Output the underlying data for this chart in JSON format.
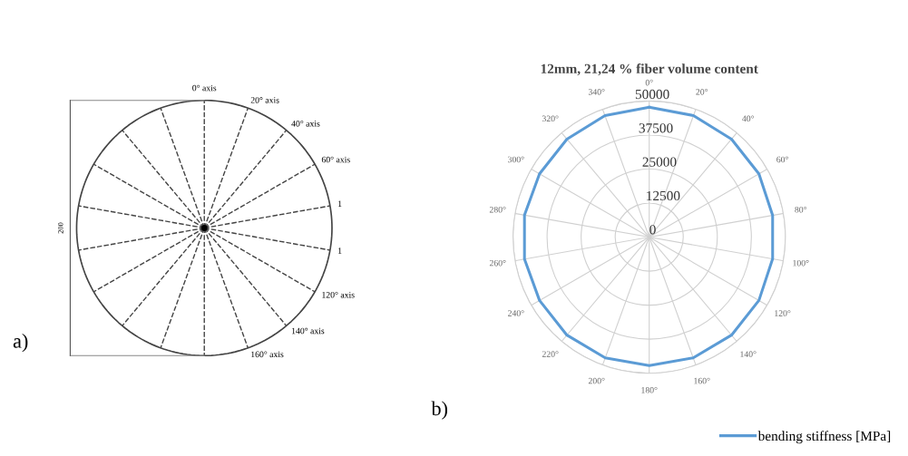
{
  "chart_data": [
    {
      "type": "other",
      "annotations": [
        "0° axis",
        "20° axis",
        "40° axis",
        "60° axis",
        "1",
        "1",
        "120° axis",
        "140° axis",
        "160° axis",
        "200",
        "a)"
      ]
    },
    {
      "type": "radar",
      "title": "12mm, 21,24 % fiber volume content",
      "categories": [
        "0°",
        "20°",
        "40°",
        "60°",
        "80°",
        "100°",
        "120°",
        "140°",
        "160°",
        "180°",
        "200°",
        "220°",
        "240°",
        "260°",
        "280°",
        "300°",
        "320°",
        "340°"
      ],
      "series": [
        {
          "name": "bending stiffness [MPa]",
          "color": "#5b9bd5",
          "values": [
            47700,
            47500,
            47000,
            46500,
            46000,
            46000,
            46500,
            47000,
            47200,
            47200,
            47200,
            47000,
            46500,
            46500,
            46500,
            46500,
            47000,
            47500
          ]
        }
      ],
      "ylim": [
        0,
        50000
      ],
      "yticks": [
        0,
        12500,
        25000,
        37500,
        50000
      ],
      "grid": true,
      "legend": "bottom right",
      "marker": "none",
      "line_style": "solid",
      "annotations": [
        "b)"
      ]
    }
  ]
}
